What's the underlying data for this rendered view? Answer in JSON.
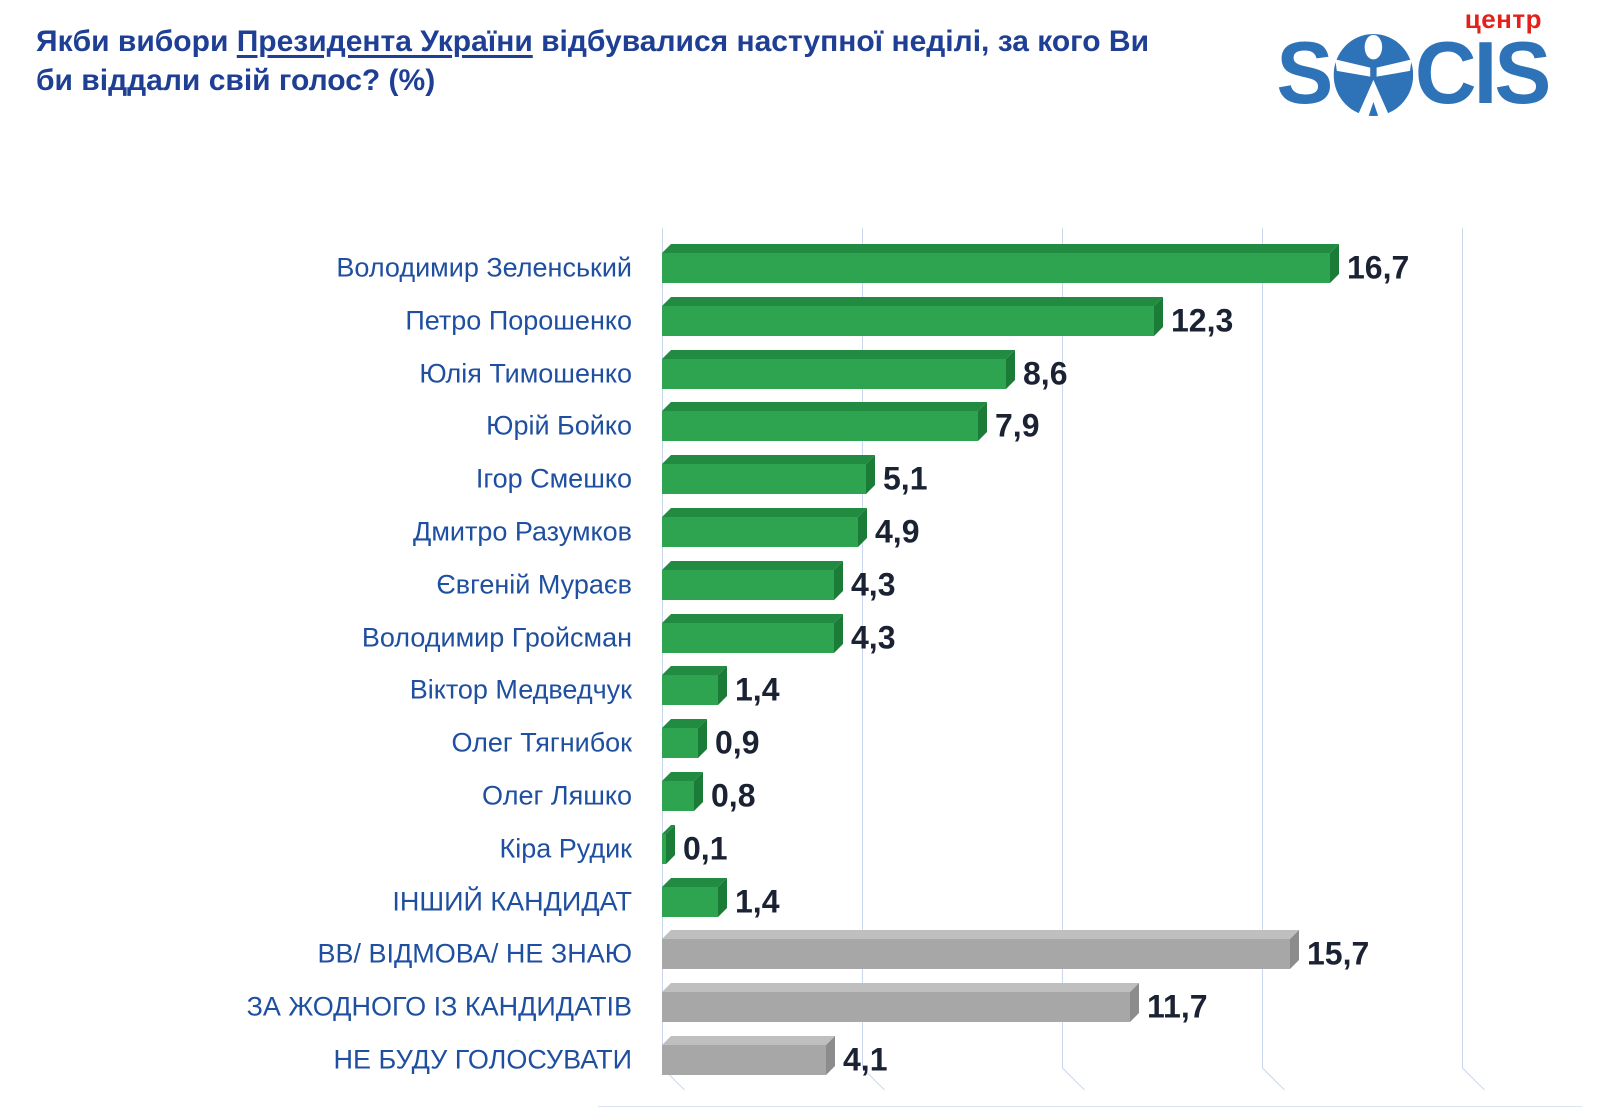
{
  "title": {
    "prefix": "Якби вибори ",
    "underlined": "Президента України",
    "suffix": " відбувалися наступної неділі, за кого Ви би віддали свій голос? (%)"
  },
  "logo": {
    "tagline": "центр",
    "brand_s1": "S",
    "brand_c": "C",
    "brand_i": "I",
    "brand_s2": "S"
  },
  "colors": {
    "title_blue": "#1e3f94",
    "label_blue": "#1f4fa0",
    "value_dark": "#1a2233",
    "gridline": "#c9d6ec",
    "logo_blue": "#2e73b8",
    "logo_red": "#e2211c",
    "series": {
      "green": {
        "face": "#2ea450",
        "top": "#218c41",
        "end": "#1b7c38"
      },
      "gray": {
        "face": "#a7a7a7",
        "top": "#bfbfbf",
        "end": "#8c8c8c"
      }
    }
  },
  "chart_data": {
    "type": "bar",
    "orientation": "horizontal",
    "unit": "%",
    "xlim": [
      0,
      20
    ],
    "gridline_step": 5,
    "grid": true,
    "legend": false,
    "categories": [
      "Володимир Зеленський",
      "Петро Порошенко",
      "Юлія Тимошенко",
      "Юрій Бойко",
      "Ігор Смешко",
      "Дмитро Разумков",
      "Євгеній Мураєв",
      "Володимир Гройсман",
      "Віктор Медведчук",
      "Олег Тягнибок",
      "Олег Ляшко",
      "Кіра Рудик",
      "ІНШИЙ КАНДИДАТ",
      "ВВ/ ВІДМОВА/ НЕ ЗНАЮ",
      "ЗА ЖОДНОГО ІЗ КАНДИДАТІВ",
      "НЕ БУДУ ГОЛОСУВАТИ"
    ],
    "values": [
      16.7,
      12.3,
      8.6,
      7.9,
      5.1,
      4.9,
      4.3,
      4.3,
      1.4,
      0.9,
      0.8,
      0.1,
      1.4,
      15.7,
      11.7,
      4.1
    ],
    "value_labels": [
      "16,7",
      "12,3",
      "8,6",
      "7,9",
      "5,1",
      "4,9",
      "4,3",
      "4,3",
      "1,4",
      "0,9",
      "0,8",
      "0,1",
      "1,4",
      "15,7",
      "11,7",
      "4,1"
    ],
    "series_colors": [
      "green",
      "green",
      "green",
      "green",
      "green",
      "green",
      "green",
      "green",
      "green",
      "green",
      "green",
      "green",
      "green",
      "gray",
      "gray",
      "gray"
    ]
  }
}
